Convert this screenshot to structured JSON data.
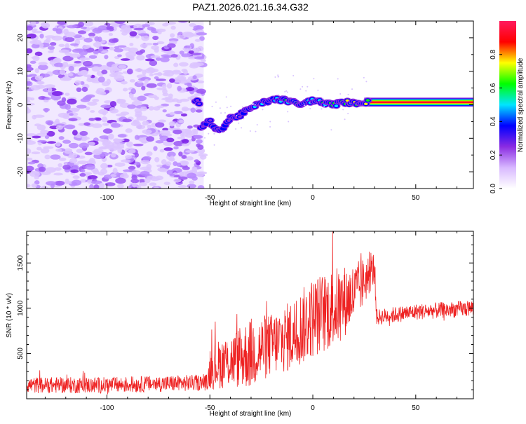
{
  "title": "PAZ1.2026.021.16.34.G32",
  "chart_data": [
    {
      "type": "heatmap",
      "name": "spectrogram",
      "xlabel": "Height of straight line (km)",
      "ylabel": "Frequency (Hz)",
      "xlim": [
        -139,
        78
      ],
      "ylim": [
        -25,
        25
      ],
      "xticks": [
        -100,
        -50,
        0,
        50
      ],
      "yticks": [
        -20,
        -10,
        0,
        10,
        20
      ],
      "noise_region_x": [
        -139,
        -53
      ],
      "signal_track": [
        {
          "x": -55,
          "f": -7
        },
        {
          "x": -50,
          "f": -5
        },
        {
          "x": -45,
          "f": -8
        },
        {
          "x": -40,
          "f": -4
        },
        {
          "x": -35,
          "f": -3
        },
        {
          "x": -30,
          "f": -1
        },
        {
          "x": -25,
          "f": 0.5
        },
        {
          "x": -20,
          "f": 1.5
        },
        {
          "x": -15,
          "f": 1.5
        },
        {
          "x": -10,
          "f": 0.8
        },
        {
          "x": -5,
          "f": 0
        },
        {
          "x": 0,
          "f": 1.5
        },
        {
          "x": 5,
          "f": 0.5
        },
        {
          "x": 10,
          "f": 0
        },
        {
          "x": 15,
          "f": 0.8
        },
        {
          "x": 20,
          "f": 0.5
        },
        {
          "x": 25,
          "f": 0.8
        },
        {
          "x": 78,
          "f": 0.8
        }
      ],
      "colorbar": {
        "label": "Normalized spectral amplitude",
        "ticks": [
          "0.0",
          "0.2",
          "0.4",
          "0.6",
          "0.8"
        ],
        "range": [
          0,
          1
        ],
        "colors": [
          "#ffffff",
          "#d8b8ff",
          "#8a2be2",
          "#0000ff",
          "#00e5ff",
          "#00ff00",
          "#ffff00",
          "#ff0000",
          "#ff1a5e"
        ]
      }
    },
    {
      "type": "line",
      "name": "snr",
      "xlabel": "Height of straight line (km)",
      "ylabel": "SNR (10 * v/v)",
      "xlim": [
        -139,
        78
      ],
      "ylim": [
        0,
        1850
      ],
      "xticks": [
        -100,
        -50,
        0,
        50
      ],
      "yticks": [
        500,
        1000,
        1500
      ],
      "line_color": "#ee2222",
      "envelope": [
        {
          "x": -139,
          "mean": 150,
          "spread": 90
        },
        {
          "x": -100,
          "mean": 150,
          "spread": 90
        },
        {
          "x": -51,
          "mean": 180,
          "spread": 90
        },
        {
          "x": -50,
          "mean": 350,
          "spread": 250
        },
        {
          "x": -40,
          "mean": 420,
          "spread": 300
        },
        {
          "x": -30,
          "mean": 500,
          "spread": 400
        },
        {
          "x": -20,
          "mean": 600,
          "spread": 350
        },
        {
          "x": -10,
          "mean": 700,
          "spread": 400
        },
        {
          "x": 0,
          "mean": 900,
          "spread": 450
        },
        {
          "x": 10,
          "mean": 1000,
          "spread": 450
        },
        {
          "x": 20,
          "mean": 1150,
          "spread": 350
        },
        {
          "x": 30,
          "mean": 1450,
          "spread": 180
        },
        {
          "x": 31,
          "mean": 900,
          "spread": 90
        },
        {
          "x": 50,
          "mean": 960,
          "spread": 90
        },
        {
          "x": 78,
          "mean": 1000,
          "spread": 90
        }
      ]
    }
  ]
}
